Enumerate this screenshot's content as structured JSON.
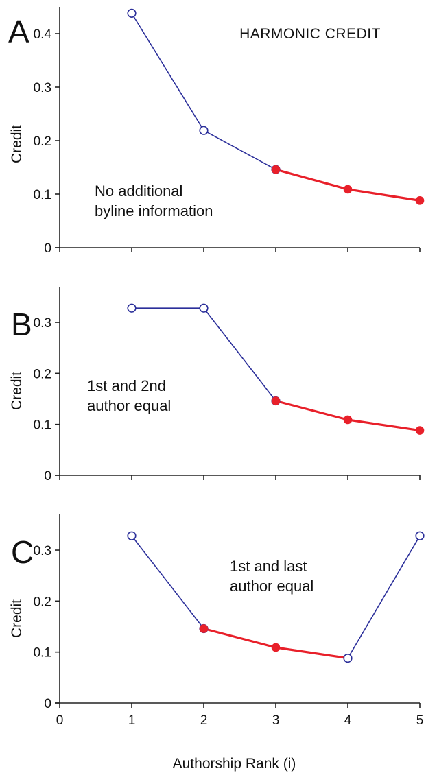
{
  "chart_data": [
    {
      "type": "line",
      "panel": "A",
      "title": "HARMONIC  CREDIT",
      "ylabel": "Credit",
      "xlim": [
        0,
        5
      ],
      "ylim": [
        0,
        0.45
      ],
      "yticks": [
        0,
        0.1,
        0.2,
        0.3,
        0.4
      ],
      "ytick_labels": [
        "0",
        "0.1",
        "0.2",
        "0.3",
        "0.4"
      ],
      "annotation": [
        "No additional",
        "byline information"
      ],
      "series": [
        {
          "x": [
            1,
            2,
            3
          ],
          "values": [
            0.438,
            0.219,
            0.146
          ],
          "color": "#2b2f9a",
          "marker": "open-circle"
        },
        {
          "x": [
            3,
            4,
            5
          ],
          "values": [
            0.146,
            0.109,
            0.088
          ],
          "color": "#e8202a",
          "marker": "filled-circle"
        }
      ]
    },
    {
      "type": "line",
      "panel": "B",
      "ylabel": "Credit",
      "xlim": [
        0,
        5
      ],
      "ylim": [
        0,
        0.37
      ],
      "yticks": [
        0,
        0.1,
        0.2,
        0.3
      ],
      "ytick_labels": [
        "0",
        "0.1",
        "0.2",
        "0.3"
      ],
      "annotation": [
        "1st and 2nd",
        "author equal"
      ],
      "series": [
        {
          "x": [
            1,
            2,
            3
          ],
          "values": [
            0.328,
            0.328,
            0.146
          ],
          "color": "#2b2f9a",
          "marker": "open-circle"
        },
        {
          "x": [
            3,
            4,
            5
          ],
          "values": [
            0.146,
            0.109,
            0.088
          ],
          "color": "#e8202a",
          "marker": "filled-circle"
        }
      ]
    },
    {
      "type": "line",
      "panel": "C",
      "ylabel": "Credit",
      "xlabel": "Authorship Rank (i)",
      "xlim": [
        0,
        5
      ],
      "ylim": [
        0,
        0.37
      ],
      "xticks": [
        0,
        1,
        2,
        3,
        4,
        5
      ],
      "xtick_labels": [
        "0",
        "1",
        "2",
        "3",
        "4",
        "5"
      ],
      "yticks": [
        0,
        0.1,
        0.2,
        0.3
      ],
      "ytick_labels": [
        "0",
        "0.1",
        "0.2",
        "0.3"
      ],
      "annotation": [
        "1st and last",
        "author equal"
      ],
      "series": [
        {
          "x": [
            1,
            2
          ],
          "values": [
            0.328,
            0.146
          ],
          "color": "#2b2f9a",
          "marker": "open-circle"
        },
        {
          "x": [
            2,
            3,
            4
          ],
          "values": [
            0.146,
            0.109,
            0.088
          ],
          "color": "#e8202a",
          "marker": "filled-circle"
        },
        {
          "x": [
            4,
            5
          ],
          "values": [
            0.088,
            0.328
          ],
          "color": "#2b2f9a",
          "marker": "open-circle"
        }
      ]
    }
  ]
}
